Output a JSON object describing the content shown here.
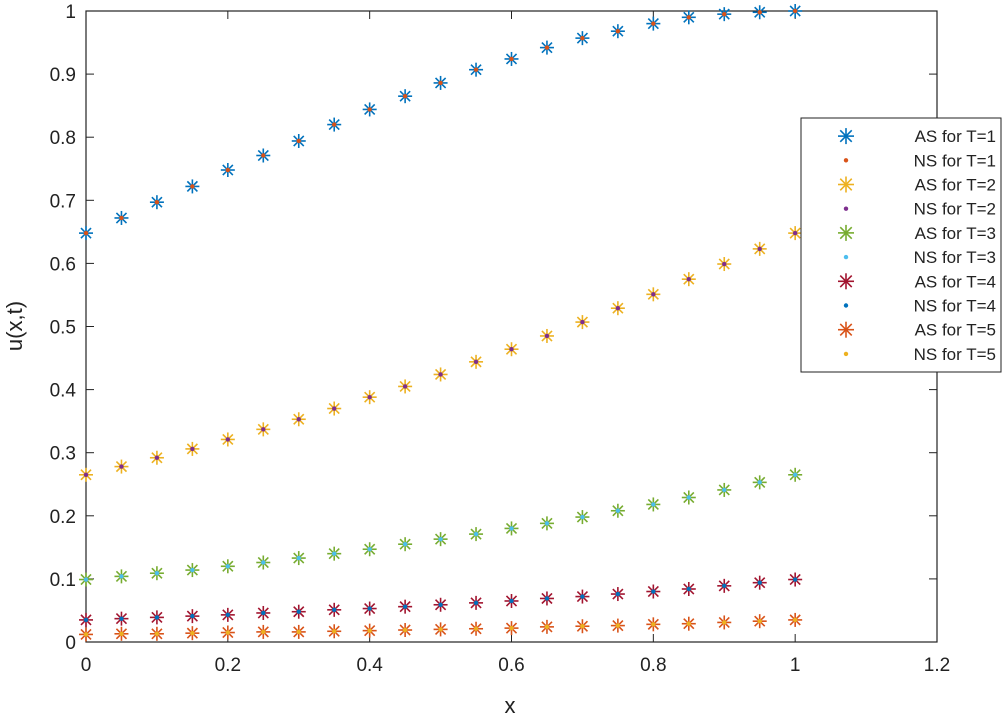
{
  "chart_data": {
    "type": "scatter",
    "title": "",
    "xlabel": "x",
    "ylabel": "u(x,t)",
    "xlim": [
      0,
      1.2
    ],
    "ylim": [
      0,
      1
    ],
    "xticks": [
      0,
      0.2,
      0.4,
      0.6,
      0.8,
      1,
      1.2
    ],
    "xtick_labels": [
      "0",
      "0.2",
      "0.4",
      "0.6",
      "0.8",
      "1",
      "1.2"
    ],
    "yticks": [
      0,
      0.1,
      0.2,
      0.3,
      0.4,
      0.5,
      0.6,
      0.7,
      0.8,
      0.9,
      1
    ],
    "ytick_labels": [
      "0",
      "0.1",
      "0.2",
      "0.3",
      "0.4",
      "0.5",
      "0.6",
      "0.7",
      "0.8",
      "0.9",
      "1"
    ],
    "grid": false,
    "legend_position": "right",
    "x": [
      0,
      0.05,
      0.1,
      0.15,
      0.2,
      0.25,
      0.3,
      0.35,
      0.4,
      0.45,
      0.5,
      0.55,
      0.6,
      0.65,
      0.7,
      0.75,
      0.8,
      0.85,
      0.9,
      0.95,
      1
    ],
    "series": [
      {
        "name": "AS for T=1",
        "marker": "asterisk",
        "color": "#0072BD",
        "values": [
          0.648,
          0.672,
          0.697,
          0.722,
          0.748,
          0.771,
          0.794,
          0.82,
          0.844,
          0.865,
          0.886,
          0.907,
          0.924,
          0.942,
          0.957,
          0.968,
          0.98,
          0.99,
          0.995,
          0.998,
          1.0
        ]
      },
      {
        "name": "NS for T=1",
        "marker": "dot",
        "color": "#D95319",
        "values": [
          0.648,
          0.672,
          0.697,
          0.722,
          0.748,
          0.771,
          0.794,
          0.82,
          0.844,
          0.865,
          0.886,
          0.907,
          0.924,
          0.942,
          0.957,
          0.968,
          0.98,
          0.99,
          0.995,
          0.998,
          1.0
        ]
      },
      {
        "name": "AS for T=2",
        "marker": "asterisk",
        "color": "#EDB120",
        "values": [
          0.265,
          0.278,
          0.292,
          0.306,
          0.321,
          0.337,
          0.353,
          0.37,
          0.388,
          0.405,
          0.424,
          0.444,
          0.464,
          0.485,
          0.507,
          0.529,
          0.551,
          0.575,
          0.599,
          0.623,
          0.648
        ]
      },
      {
        "name": "NS for T=2",
        "marker": "dot",
        "color": "#7E2F8E",
        "values": [
          0.265,
          0.278,
          0.292,
          0.306,
          0.321,
          0.337,
          0.353,
          0.37,
          0.388,
          0.405,
          0.424,
          0.444,
          0.464,
          0.485,
          0.507,
          0.529,
          0.551,
          0.575,
          0.599,
          0.623,
          0.648
        ]
      },
      {
        "name": "AS for T=3",
        "marker": "asterisk",
        "color": "#77AC30",
        "values": [
          0.099,
          0.104,
          0.109,
          0.114,
          0.12,
          0.126,
          0.133,
          0.14,
          0.147,
          0.155,
          0.163,
          0.171,
          0.18,
          0.188,
          0.198,
          0.208,
          0.218,
          0.229,
          0.241,
          0.253,
          0.265
        ]
      },
      {
        "name": "NS for T=3",
        "marker": "dot",
        "color": "#4DBEEE",
        "values": [
          0.099,
          0.104,
          0.109,
          0.114,
          0.12,
          0.126,
          0.133,
          0.14,
          0.147,
          0.155,
          0.163,
          0.171,
          0.18,
          0.188,
          0.198,
          0.208,
          0.218,
          0.229,
          0.241,
          0.253,
          0.265
        ]
      },
      {
        "name": "AS for T=4",
        "marker": "asterisk",
        "color": "#A2142F",
        "values": [
          0.035,
          0.037,
          0.039,
          0.041,
          0.043,
          0.046,
          0.048,
          0.051,
          0.053,
          0.056,
          0.059,
          0.062,
          0.065,
          0.069,
          0.072,
          0.076,
          0.08,
          0.084,
          0.089,
          0.094,
          0.099
        ]
      },
      {
        "name": "NS for T=4",
        "marker": "dot",
        "color": "#0072BD",
        "values": [
          0.035,
          0.037,
          0.039,
          0.041,
          0.043,
          0.046,
          0.048,
          0.051,
          0.053,
          0.056,
          0.059,
          0.062,
          0.065,
          0.069,
          0.072,
          0.076,
          0.08,
          0.084,
          0.089,
          0.094,
          0.099
        ]
      },
      {
        "name": "AS for T=5",
        "marker": "asterisk",
        "color": "#D95319",
        "values": [
          0.012,
          0.013,
          0.013,
          0.014,
          0.015,
          0.016,
          0.016,
          0.017,
          0.018,
          0.019,
          0.02,
          0.021,
          0.022,
          0.024,
          0.025,
          0.026,
          0.028,
          0.029,
          0.031,
          0.033,
          0.035
        ]
      },
      {
        "name": "NS for T=5",
        "marker": "dot",
        "color": "#EDB120",
        "values": [
          0.012,
          0.013,
          0.013,
          0.014,
          0.015,
          0.016,
          0.016,
          0.017,
          0.018,
          0.019,
          0.02,
          0.021,
          0.022,
          0.024,
          0.025,
          0.026,
          0.028,
          0.029,
          0.031,
          0.033,
          0.035
        ]
      }
    ]
  }
}
